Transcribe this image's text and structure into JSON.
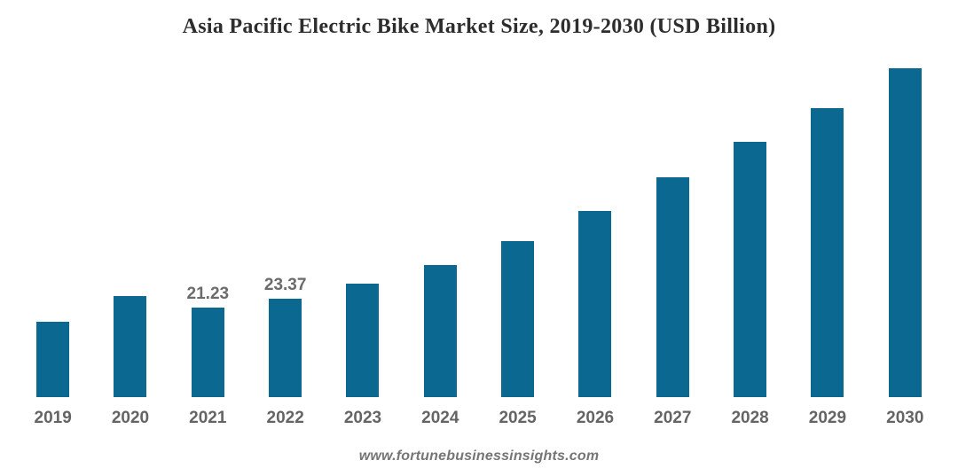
{
  "title": "Asia Pacific Electric Bike Market Size, 2019-2030 (USD Billion)",
  "footer": {
    "website": "www.fortunebusinessinsights.com"
  },
  "colors": {
    "bar": "#0b6991",
    "title_text": "#2d2d2d",
    "data_label_text": "#6b6b6b",
    "axis_tick_text": "#646464",
    "footer_text": "#757575",
    "background": "#ffffff"
  },
  "chart_data": {
    "type": "bar",
    "title": "Asia Pacific Electric Bike Market Size, 2019-2030 (USD Billion)",
    "categories": [
      "2019",
      "2020",
      "2021",
      "2022",
      "2023",
      "2024",
      "2025",
      "2026",
      "2027",
      "2028",
      "2029",
      "2030"
    ],
    "values": [
      17.9,
      24.0,
      21.23,
      23.37,
      26.9,
      31.3,
      37.0,
      44.2,
      52.2,
      60.6,
      68.6,
      78.1
    ],
    "data_labels": {
      "2021": "21.23",
      "2022": "23.37"
    },
    "xlabel": "",
    "ylabel": "USD Billion",
    "ylim": [
      0,
      82
    ],
    "grid": false,
    "legend": false,
    "axis_lines": false,
    "notes": "Only 2021 and 2022 bars carry visible value labels; other values estimated from bar heights."
  }
}
